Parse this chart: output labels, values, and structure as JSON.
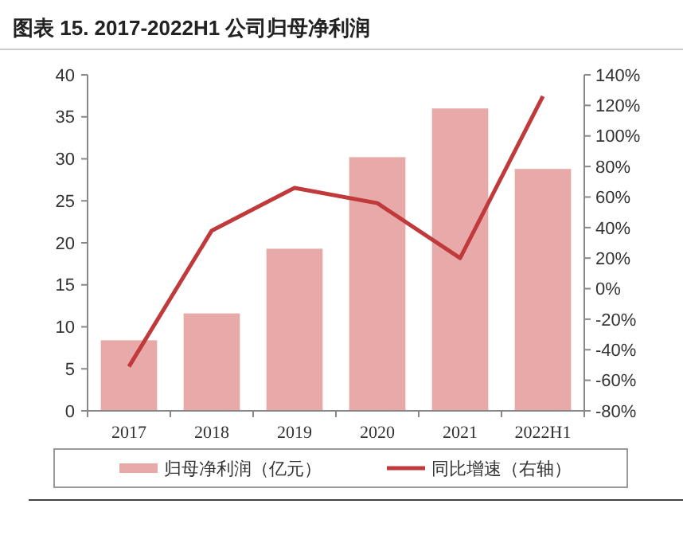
{
  "chart_data": {
    "type": "bar",
    "title": "图表 15. 2017-2022H1 公司归母净利润",
    "categories": [
      "2017",
      "2018",
      "2019",
      "2020",
      "2021",
      "2022H1"
    ],
    "series": [
      {
        "name": "归母净利润（亿元）",
        "color": "#e8a9a9",
        "values": [
          8.4,
          11.6,
          19.3,
          30.2,
          36.0,
          28.8
        ]
      },
      {
        "name": "同比增速（右轴）",
        "type": "line",
        "axis": "y2",
        "color": "#c0393b",
        "values": [
          -51,
          38,
          66,
          56,
          20,
          126
        ]
      }
    ],
    "ylim": [
      0,
      40
    ],
    "yticks": [
      0,
      5,
      10,
      15,
      20,
      25,
      30,
      35,
      40
    ],
    "y2lim": [
      -80,
      140
    ],
    "y2ticks": [
      {
        "value": -80,
        "label": "-80%"
      },
      {
        "value": -60,
        "label": "-60%"
      },
      {
        "value": -40,
        "label": "-40%"
      },
      {
        "value": -20,
        "label": "-20%"
      },
      {
        "value": 0,
        "label": "0%"
      },
      {
        "value": 20,
        "label": "20%"
      },
      {
        "value": 40,
        "label": "40%"
      },
      {
        "value": 60,
        "label": "60%"
      },
      {
        "value": 80,
        "label": "80%"
      },
      {
        "value": 100,
        "label": "100%"
      },
      {
        "value": 120,
        "label": "120%"
      },
      {
        "value": 140,
        "label": "140%"
      }
    ],
    "legend": "bottom",
    "marker": "none",
    "line_style": "solid"
  }
}
